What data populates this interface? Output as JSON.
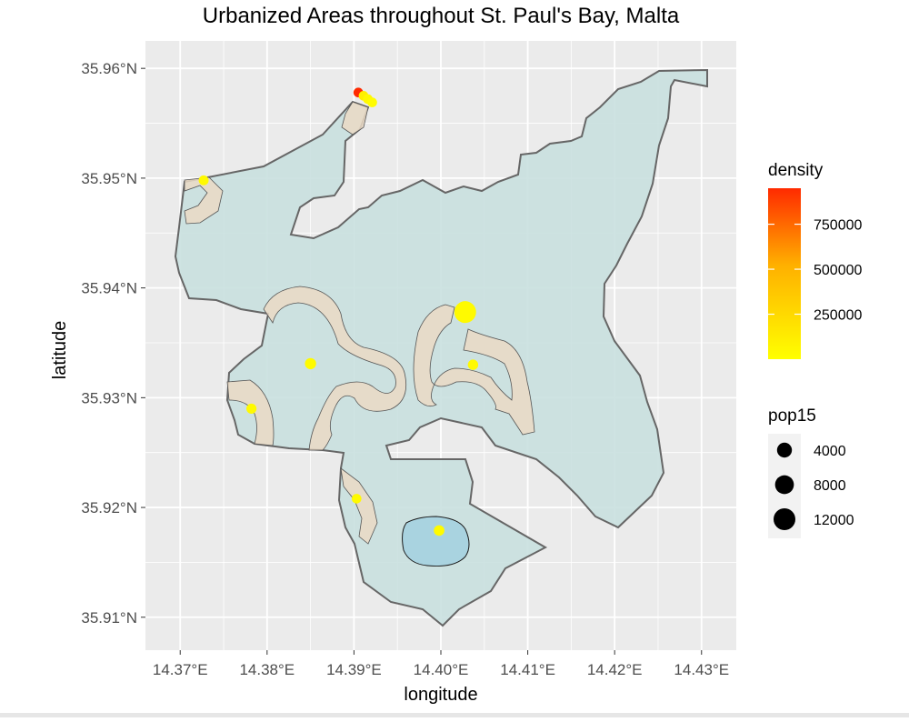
{
  "chart_data": {
    "type": "map",
    "title": "Urbanized Areas throughout St. Paul's Bay, Malta",
    "xlabel": "longitude",
    "ylabel": "latitude",
    "xlim": [
      14.366,
      14.434
    ],
    "ylim": [
      35.907,
      35.9625
    ],
    "x_ticks": [
      14.37,
      14.38,
      14.39,
      14.4,
      14.41,
      14.42,
      14.43
    ],
    "x_tick_labels": [
      "14.37°E",
      "14.38°E",
      "14.39°E",
      "14.40°E",
      "14.41°E",
      "14.42°E",
      "14.43°E"
    ],
    "y_ticks": [
      35.91,
      35.92,
      35.93,
      35.94,
      35.95,
      35.96
    ],
    "y_tick_labels": [
      "35.91°N",
      "35.92°N",
      "35.93°N",
      "35.94°N",
      "35.95°N",
      "35.96°N"
    ],
    "grid": true,
    "points": [
      {
        "lon": 14.3905,
        "lat": 35.9578,
        "pop15": 800,
        "density": 950000
      },
      {
        "lon": 14.3911,
        "lat": 35.9575,
        "pop15": 800,
        "density": 90000
      },
      {
        "lon": 14.3916,
        "lat": 35.9572,
        "pop15": 800,
        "density": 40000
      },
      {
        "lon": 14.3921,
        "lat": 35.9569,
        "pop15": 800,
        "density": 20000
      },
      {
        "lon": 14.3727,
        "lat": 35.9498,
        "pop15": 900,
        "density": 30000
      },
      {
        "lon": 14.385,
        "lat": 35.9331,
        "pop15": 1500,
        "density": 25000
      },
      {
        "lon": 14.3782,
        "lat": 35.929,
        "pop15": 1000,
        "density": 30000
      },
      {
        "lon": 14.4028,
        "lat": 35.9378,
        "pop15": 12000,
        "density": 30000
      },
      {
        "lon": 14.4037,
        "lat": 35.933,
        "pop15": 1100,
        "density": 30000
      },
      {
        "lon": 14.3903,
        "lat": 35.9208,
        "pop15": 800,
        "density": 30000
      },
      {
        "lon": 14.3998,
        "lat": 35.9179,
        "pop15": 1200,
        "density": 25000
      }
    ],
    "legend_density": {
      "title": "density",
      "breaks": [
        750000,
        500000,
        250000
      ],
      "break_labels": [
        "750000",
        "500000",
        "250000"
      ],
      "range": [
        0,
        950000
      ],
      "color_low": "#ffff00",
      "color_mid": "#ffa500",
      "color_high": "#ff2a00"
    },
    "legend_pop15": {
      "title": "pop15",
      "values": [
        4000,
        8000,
        12000
      ],
      "labels": [
        "4000",
        "8000",
        "12000"
      ]
    },
    "colors": {
      "panel_bg": "#ebebeb",
      "grid": "#ffffff",
      "land_fill": "#c9e0df",
      "land_stroke": "#666666",
      "urban_fill": "#ead9c4",
      "water_fill": "#a9d3e0",
      "point_fill": "#ffff00",
      "axis_text": "#4d4d4d"
    }
  }
}
